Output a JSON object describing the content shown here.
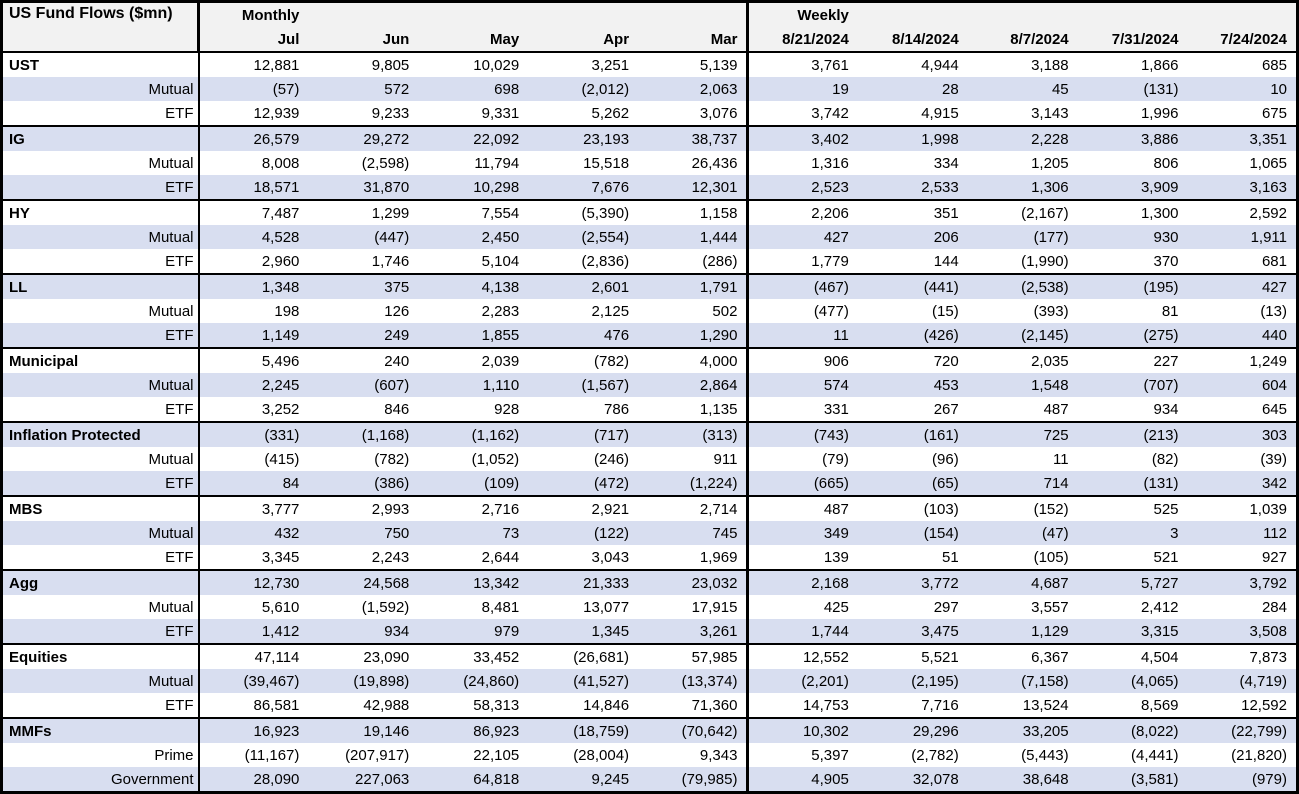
{
  "colors": {
    "row_shade": "#d8def0",
    "header_bg": "#f2f2f2",
    "border": "#000000",
    "text": "#000000"
  },
  "chart_data": {
    "type": "table",
    "title": "US Fund Flows ($mn)",
    "sections": [
      {
        "label": "Monthly",
        "columns": [
          "Jul",
          "Jun",
          "May",
          "Apr",
          "Mar"
        ]
      },
      {
        "label": "Weekly",
        "columns": [
          "8/21/2024",
          "8/14/2024",
          "8/7/2024",
          "7/31/2024",
          "7/24/2024"
        ]
      }
    ],
    "groups": [
      {
        "name": "UST",
        "monthly": [
          "12,881",
          "9,805",
          "10,029",
          "3,251",
          "5,139"
        ],
        "weekly": [
          "3,761",
          "4,944",
          "3,188",
          "1,866",
          "685"
        ],
        "subrows": [
          {
            "label": "Mutual",
            "monthly": [
              "(57)",
              "572",
              "698",
              "(2,012)",
              "2,063"
            ],
            "weekly": [
              "19",
              "28",
              "45",
              "(131)",
              "10"
            ]
          },
          {
            "label": "ETF",
            "monthly": [
              "12,939",
              "9,233",
              "9,331",
              "5,262",
              "3,076"
            ],
            "weekly": [
              "3,742",
              "4,915",
              "3,143",
              "1,996",
              "675"
            ]
          }
        ]
      },
      {
        "name": "IG",
        "monthly": [
          "26,579",
          "29,272",
          "22,092",
          "23,193",
          "38,737"
        ],
        "weekly": [
          "3,402",
          "1,998",
          "2,228",
          "3,886",
          "3,351"
        ],
        "subrows": [
          {
            "label": "Mutual",
            "monthly": [
              "8,008",
              "(2,598)",
              "11,794",
              "15,518",
              "26,436"
            ],
            "weekly": [
              "1,316",
              "334",
              "1,205",
              "806",
              "1,065"
            ]
          },
          {
            "label": "ETF",
            "monthly": [
              "18,571",
              "31,870",
              "10,298",
              "7,676",
              "12,301"
            ],
            "weekly": [
              "2,523",
              "2,533",
              "1,306",
              "3,909",
              "3,163"
            ]
          }
        ]
      },
      {
        "name": "HY",
        "monthly": [
          "7,487",
          "1,299",
          "7,554",
          "(5,390)",
          "1,158"
        ],
        "weekly": [
          "2,206",
          "351",
          "(2,167)",
          "1,300",
          "2,592"
        ],
        "subrows": [
          {
            "label": "Mutual",
            "monthly": [
              "4,528",
              "(447)",
              "2,450",
              "(2,554)",
              "1,444"
            ],
            "weekly": [
              "427",
              "206",
              "(177)",
              "930",
              "1,911"
            ]
          },
          {
            "label": "ETF",
            "monthly": [
              "2,960",
              "1,746",
              "5,104",
              "(2,836)",
              "(286)"
            ],
            "weekly": [
              "1,779",
              "144",
              "(1,990)",
              "370",
              "681"
            ]
          }
        ]
      },
      {
        "name": "LL",
        "monthly": [
          "1,348",
          "375",
          "4,138",
          "2,601",
          "1,791"
        ],
        "weekly": [
          "(467)",
          "(441)",
          "(2,538)",
          "(195)",
          "427"
        ],
        "subrows": [
          {
            "label": "Mutual",
            "monthly": [
              "198",
              "126",
              "2,283",
              "2,125",
              "502"
            ],
            "weekly": [
              "(477)",
              "(15)",
              "(393)",
              "81",
              "(13)"
            ]
          },
          {
            "label": "ETF",
            "monthly": [
              "1,149",
              "249",
              "1,855",
              "476",
              "1,290"
            ],
            "weekly": [
              "11",
              "(426)",
              "(2,145)",
              "(275)",
              "440"
            ]
          }
        ]
      },
      {
        "name": "Municipal",
        "monthly": [
          "5,496",
          "240",
          "2,039",
          "(782)",
          "4,000"
        ],
        "weekly": [
          "906",
          "720",
          "2,035",
          "227",
          "1,249"
        ],
        "subrows": [
          {
            "label": "Mutual",
            "monthly": [
              "2,245",
              "(607)",
              "1,110",
              "(1,567)",
              "2,864"
            ],
            "weekly": [
              "574",
              "453",
              "1,548",
              "(707)",
              "604"
            ]
          },
          {
            "label": "ETF",
            "monthly": [
              "3,252",
              "846",
              "928",
              "786",
              "1,135"
            ],
            "weekly": [
              "331",
              "267",
              "487",
              "934",
              "645"
            ]
          }
        ]
      },
      {
        "name": "Inflation Protected",
        "monthly": [
          "(331)",
          "(1,168)",
          "(1,162)",
          "(717)",
          "(313)"
        ],
        "weekly": [
          "(743)",
          "(161)",
          "725",
          "(213)",
          "303"
        ],
        "subrows": [
          {
            "label": "Mutual",
            "monthly": [
              "(415)",
              "(782)",
              "(1,052)",
              "(246)",
              "911"
            ],
            "weekly": [
              "(79)",
              "(96)",
              "11",
              "(82)",
              "(39)"
            ]
          },
          {
            "label": "ETF",
            "monthly": [
              "84",
              "(386)",
              "(109)",
              "(472)",
              "(1,224)"
            ],
            "weekly": [
              "(665)",
              "(65)",
              "714",
              "(131)",
              "342"
            ]
          }
        ]
      },
      {
        "name": "MBS",
        "monthly": [
          "3,777",
          "2,993",
          "2,716",
          "2,921",
          "2,714"
        ],
        "weekly": [
          "487",
          "(103)",
          "(152)",
          "525",
          "1,039"
        ],
        "subrows": [
          {
            "label": "Mutual",
            "monthly": [
              "432",
              "750",
              "73",
              "(122)",
              "745"
            ],
            "weekly": [
              "349",
              "(154)",
              "(47)",
              "3",
              "112"
            ]
          },
          {
            "label": "ETF",
            "monthly": [
              "3,345",
              "2,243",
              "2,644",
              "3,043",
              "1,969"
            ],
            "weekly": [
              "139",
              "51",
              "(105)",
              "521",
              "927"
            ]
          }
        ]
      },
      {
        "name": "Agg",
        "monthly": [
          "12,730",
          "24,568",
          "13,342",
          "21,333",
          "23,032"
        ],
        "weekly": [
          "2,168",
          "3,772",
          "4,687",
          "5,727",
          "3,792"
        ],
        "subrows": [
          {
            "label": "Mutual",
            "monthly": [
              "5,610",
              "(1,592)",
              "8,481",
              "13,077",
              "17,915"
            ],
            "weekly": [
              "425",
              "297",
              "3,557",
              "2,412",
              "284"
            ]
          },
          {
            "label": "ETF",
            "monthly": [
              "1,412",
              "934",
              "979",
              "1,345",
              "3,261"
            ],
            "weekly": [
              "1,744",
              "3,475",
              "1,129",
              "3,315",
              "3,508"
            ]
          }
        ]
      },
      {
        "name": "Equities",
        "monthly": [
          "47,114",
          "23,090",
          "33,452",
          "(26,681)",
          "57,985"
        ],
        "weekly": [
          "12,552",
          "5,521",
          "6,367",
          "4,504",
          "7,873"
        ],
        "subrows": [
          {
            "label": "Mutual",
            "monthly": [
              "(39,467)",
              "(19,898)",
              "(24,860)",
              "(41,527)",
              "(13,374)"
            ],
            "weekly": [
              "(2,201)",
              "(2,195)",
              "(7,158)",
              "(4,065)",
              "(4,719)"
            ]
          },
          {
            "label": "ETF",
            "monthly": [
              "86,581",
              "42,988",
              "58,313",
              "14,846",
              "71,360"
            ],
            "weekly": [
              "14,753",
              "7,716",
              "13,524",
              "8,569",
              "12,592"
            ]
          }
        ]
      },
      {
        "name": "MMFs",
        "monthly": [
          "16,923",
          "19,146",
          "86,923",
          "(18,759)",
          "(70,642)"
        ],
        "weekly": [
          "10,302",
          "29,296",
          "33,205",
          "(8,022)",
          "(22,799)"
        ],
        "subrows": [
          {
            "label": "Prime",
            "monthly": [
              "(11,167)",
              "(207,917)",
              "22,105",
              "(28,004)",
              "9,343"
            ],
            "weekly": [
              "5,397",
              "(2,782)",
              "(5,443)",
              "(4,441)",
              "(21,820)"
            ]
          },
          {
            "label": "Government",
            "monthly": [
              "28,090",
              "227,063",
              "64,818",
              "9,245",
              "(79,985)"
            ],
            "weekly": [
              "4,905",
              "32,078",
              "38,648",
              "(3,581)",
              "(979)"
            ]
          }
        ]
      }
    ]
  }
}
